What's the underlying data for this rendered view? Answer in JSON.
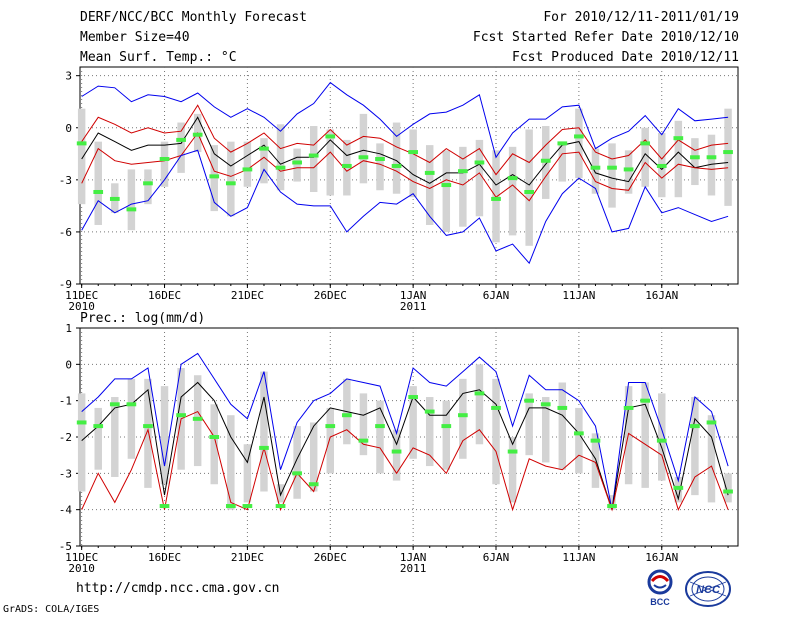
{
  "header": {
    "left": [
      "DERF/NCC/BCC Monthly Forecast",
      "Member Size=40",
      "Mean Surf. Temp.: °C"
    ],
    "right": [
      "For 2010/12/11-2011/01/19",
      "Fcst Started Refer Date 2010/12/10",
      "Fcst Produced Date 2010/12/11"
    ]
  },
  "footer": {
    "url": "http://cmdp.ncc.cma.gov.cn",
    "credit": "GrADS: COLA/IGES"
  },
  "logos": {
    "bcc": "BCC",
    "ncc": "NCC"
  },
  "colors": {
    "blue": "#0000ee",
    "red": "#d00000",
    "black": "#000000",
    "green": "#44ee44",
    "box": "#d3d3d3",
    "grid": "#777777"
  },
  "chart_data": [
    {
      "type": "line",
      "title": "",
      "ylabel": "",
      "ylim": [
        -9,
        3.5
      ],
      "yticks": [
        3,
        0,
        -3,
        -6,
        -9
      ],
      "xticks": [
        {
          "day": 1,
          "label": "11DEC",
          "label2": "2010"
        },
        {
          "day": 6,
          "label": "16DEC",
          "label2": ""
        },
        {
          "day": 11,
          "label": "21DEC",
          "label2": ""
        },
        {
          "day": 16,
          "label": "26DEC",
          "label2": ""
        },
        {
          "day": 21,
          "label": "1JAN",
          "label2": "2011"
        },
        {
          "day": 26,
          "label": "6JAN",
          "label2": ""
        },
        {
          "day": 31,
          "label": "11JAN",
          "label2": ""
        },
        {
          "day": 36,
          "label": "16JAN",
          "label2": ""
        }
      ],
      "xlim": [
        0.9,
        40.6
      ],
      "series": [
        {
          "name": "max",
          "color": "blue",
          "values": [
            1.8,
            2.4,
            2.3,
            1.5,
            1.9,
            1.8,
            1.5,
            2.0,
            1.2,
            0.6,
            1.1,
            0.6,
            -0.2,
            0.8,
            1.4,
            2.6,
            1.9,
            1.3,
            0.5,
            -0.5,
            0.2,
            0.8,
            0.9,
            1.3,
            1.9,
            -1.7,
            -0.3,
            0.5,
            0.5,
            1.2,
            1.3,
            -1.2,
            -0.6,
            -0.2,
            0.7,
            -0.4,
            1.1,
            0.4,
            0.5,
            0.6
          ]
        },
        {
          "name": "upper",
          "color": "red",
          "values": [
            -0.8,
            0.6,
            0.2,
            -0.3,
            0.0,
            -0.3,
            -0.2,
            1.3,
            -0.6,
            -1.4,
            -0.9,
            -0.3,
            -1.2,
            -0.9,
            -1.0,
            -0.1,
            -1.0,
            -0.5,
            -0.6,
            -1.1,
            -1.5,
            -2.0,
            -1.2,
            -1.8,
            -1.2,
            -2.7,
            -1.5,
            -2.0,
            -1.0,
            -0.1,
            0.0,
            -1.4,
            -1.8,
            -1.6,
            -0.7,
            -1.8,
            -0.7,
            -1.3,
            -1.0,
            -0.9
          ]
        },
        {
          "name": "mean",
          "color": "black",
          "values": [
            -1.8,
            -0.3,
            -0.8,
            -1.3,
            -1.0,
            -1.0,
            -0.9,
            0.6,
            -1.5,
            -2.2,
            -1.6,
            -1.0,
            -2.1,
            -1.7,
            -1.7,
            -0.7,
            -1.6,
            -1.3,
            -1.5,
            -1.9,
            -2.7,
            -3.2,
            -2.6,
            -2.6,
            -2.1,
            -3.3,
            -2.7,
            -3.3,
            -2.1,
            -1.0,
            -0.8,
            -2.6,
            -2.9,
            -3.1,
            -1.5,
            -2.4,
            -1.4,
            -2.3,
            -2.1,
            -2.0
          ]
        },
        {
          "name": "lower",
          "color": "red",
          "values": [
            -3.2,
            -1.2,
            -1.9,
            -2.1,
            -2.0,
            -1.9,
            -1.6,
            -0.3,
            -2.5,
            -2.8,
            -2.4,
            -1.7,
            -2.5,
            -2.3,
            -2.3,
            -1.4,
            -2.5,
            -1.9,
            -2.1,
            -2.5,
            -3.1,
            -3.5,
            -3.0,
            -3.3,
            -2.6,
            -4.0,
            -3.3,
            -4.2,
            -2.8,
            -1.5,
            -1.4,
            -3.1,
            -3.5,
            -3.6,
            -2.0,
            -2.9,
            -2.1,
            -2.3,
            -2.4,
            -2.3
          ]
        },
        {
          "name": "min",
          "color": "blue",
          "values": [
            -5.9,
            -4.2,
            -4.9,
            -4.4,
            -4.2,
            -3.0,
            -1.6,
            -1.3,
            -4.3,
            -5.1,
            -4.6,
            -2.4,
            -3.7,
            -4.4,
            -4.5,
            -4.5,
            -6.0,
            -5.1,
            -4.3,
            -4.4,
            -3.8,
            -5.1,
            -6.2,
            -6.0,
            -5.2,
            -7.1,
            -6.7,
            -7.8,
            -5.4,
            -3.8,
            -2.9,
            -3.5,
            -6.0,
            -5.8,
            -3.4,
            -4.9,
            -4.6,
            -5.0,
            -5.4,
            -5.1
          ]
        }
      ],
      "boxes": [
        [
          -4.4,
          1.1
        ],
        [
          -5.6,
          -0.8
        ],
        [
          -4.9,
          -3.2
        ],
        [
          -5.9,
          -2.4
        ],
        [
          -4.4,
          -2.4
        ],
        [
          -3.4,
          -0.8
        ],
        [
          -2.6,
          0.3
        ],
        [
          -1.4,
          0.8
        ],
        [
          -4.8,
          -1.0
        ],
        [
          -5.1,
          -0.8
        ],
        [
          -3.4,
          -0.8
        ],
        [
          -3.2,
          -0.6
        ],
        [
          -3.6,
          0.2
        ],
        [
          -3.1,
          -1.2
        ],
        [
          -3.7,
          0.1
        ],
        [
          -3.9,
          -0.1
        ],
        [
          -3.9,
          -0.7
        ],
        [
          -3.2,
          0.8
        ],
        [
          -3.6,
          -0.9
        ],
        [
          -3.8,
          0.3
        ],
        [
          -4.0,
          -0.1
        ],
        [
          -5.6,
          -1.0
        ],
        [
          -6.0,
          -1.3
        ],
        [
          -5.7,
          -1.1
        ],
        [
          -5.1,
          -0.7
        ],
        [
          -6.6,
          -1.3
        ],
        [
          -6.2,
          -1.1
        ],
        [
          -6.8,
          -0.1
        ],
        [
          -4.1,
          0.1
        ],
        [
          -3.1,
          -0.9
        ],
        [
          -2.9,
          1.1
        ],
        [
          -3.8,
          -1.2
        ],
        [
          -4.6,
          -0.9
        ],
        [
          -3.8,
          -1.3
        ],
        [
          -3.4,
          0.0
        ],
        [
          -4.0,
          -0.3
        ],
        [
          -4.0,
          0.4
        ],
        [
          -3.3,
          -0.6
        ],
        [
          -3.9,
          -0.4
        ],
        [
          -4.5,
          1.1
        ]
      ],
      "obs": [
        -0.9,
        -3.7,
        -4.1,
        -4.7,
        -3.2,
        -1.8,
        -0.7,
        -0.4,
        -2.8,
        -3.2,
        -2.4,
        -1.2,
        -2.3,
        -2.0,
        -1.6,
        -0.5,
        -2.2,
        -1.7,
        -1.8,
        -2.2,
        -1.4,
        -2.6,
        -3.3,
        -2.5,
        -2.0,
        -4.1,
        -2.9,
        -3.7,
        -1.9,
        -0.9,
        -0.5,
        -2.3,
        -2.3,
        -2.4,
        -0.9,
        -2.2,
        -0.6,
        -1.7,
        -1.7,
        -1.4
      ]
    },
    {
      "type": "line",
      "title": "Prec.: log(mm/d)",
      "ylabel": "",
      "ylim": [
        -5,
        1
      ],
      "yticks": [
        1,
        0,
        -1,
        -2,
        -3,
        -4,
        -5
      ],
      "xticks": [
        {
          "day": 1,
          "label": "11DEC",
          "label2": "2010"
        },
        {
          "day": 6,
          "label": "16DEC",
          "label2": ""
        },
        {
          "day": 11,
          "label": "21DEC",
          "label2": ""
        },
        {
          "day": 16,
          "label": "26DEC",
          "label2": ""
        },
        {
          "day": 21,
          "label": "1JAN",
          "label2": "2011"
        },
        {
          "day": 26,
          "label": "6JAN",
          "label2": ""
        },
        {
          "day": 31,
          "label": "11JAN",
          "label2": ""
        },
        {
          "day": 36,
          "label": "16JAN",
          "label2": ""
        }
      ],
      "xlim": [
        0.9,
        40.6
      ],
      "series": [
        {
          "name": "max",
          "color": "blue",
          "values": [
            -1.3,
            -0.9,
            -0.4,
            -0.4,
            -0.1,
            -2.8,
            0.0,
            0.3,
            -0.4,
            -1.1,
            -1.5,
            -0.2,
            -2.9,
            -1.6,
            -1.0,
            -0.8,
            -0.4,
            -0.5,
            -0.6,
            -1.9,
            -0.1,
            -0.5,
            -0.6,
            -0.2,
            0.2,
            -0.2,
            -1.7,
            -0.3,
            -0.7,
            -0.7,
            -1.0,
            -1.7,
            -4.0,
            -0.5,
            -0.5,
            -1.8,
            -3.2,
            -0.9,
            -1.3,
            -2.8
          ]
        },
        {
          "name": "mean",
          "color": "black",
          "values": [
            -2.1,
            -1.7,
            -1.2,
            -1.1,
            -0.7,
            -3.6,
            -0.9,
            -0.5,
            -1.0,
            -2.0,
            -2.7,
            -0.9,
            -3.6,
            -2.6,
            -1.7,
            -1.2,
            -1.3,
            -1.4,
            -1.2,
            -2.2,
            -0.9,
            -1.4,
            -1.4,
            -0.8,
            -0.7,
            -1.1,
            -2.2,
            -1.2,
            -1.2,
            -1.4,
            -1.9,
            -2.6,
            -4.0,
            -1.2,
            -1.1,
            -2.3,
            -3.7,
            -1.5,
            -2.0,
            -3.6
          ]
        },
        {
          "name": "min",
          "color": "red",
          "values": [
            -4.0,
            -3.0,
            -3.8,
            -2.9,
            -1.8,
            -4.0,
            -1.5,
            -1.3,
            -2.0,
            -3.8,
            -4.0,
            -2.3,
            -4.0,
            -3.0,
            -3.5,
            -2.0,
            -1.8,
            -2.2,
            -2.3,
            -3.0,
            -2.3,
            -2.5,
            -3.0,
            -2.1,
            -1.8,
            -2.4,
            -4.0,
            -2.6,
            -2.8,
            -2.9,
            -2.5,
            -2.7,
            -4.0,
            -1.9,
            -2.2,
            -2.5,
            -4.0,
            -3.1,
            -2.8,
            -4.0
          ]
        }
      ],
      "boxes": [
        [
          -3.5,
          -0.8
        ],
        [
          -2.9,
          -1.2
        ],
        [
          -3.1,
          -0.9
        ],
        [
          -2.6,
          -0.4
        ],
        [
          -3.4,
          -0.4
        ],
        [
          -3.3,
          -0.6
        ],
        [
          -2.9,
          -0.1
        ],
        [
          -2.8,
          -0.3
        ],
        [
          -3.3,
          -1.1
        ],
        [
          -4.0,
          -1.4
        ],
        [
          -3.8,
          -2.2
        ],
        [
          -3.5,
          -0.2
        ],
        [
          -3.8,
          -3.3
        ],
        [
          -3.7,
          -1.7
        ],
        [
          -3.5,
          -1.6
        ],
        [
          -3.0,
          -1.2
        ],
        [
          -2.2,
          -0.4
        ],
        [
          -2.5,
          -0.8
        ],
        [
          -3.0,
          -1.0
        ],
        [
          -3.2,
          -1.8
        ],
        [
          -2.6,
          -0.6
        ],
        [
          -2.8,
          -0.9
        ],
        [
          -2.9,
          -1.0
        ],
        [
          -2.6,
          -0.4
        ],
        [
          -2.2,
          0.0
        ],
        [
          -3.3,
          -0.4
        ],
        [
          -3.8,
          -2.0
        ],
        [
          -2.5,
          -0.8
        ],
        [
          -2.7,
          -0.9
        ],
        [
          -2.9,
          -0.5
        ],
        [
          -3.0,
          -1.2
        ],
        [
          -3.4,
          -1.9
        ],
        [
          -4.0,
          -3.6
        ],
        [
          -3.3,
          -0.6
        ],
        [
          -3.4,
          -0.5
        ],
        [
          -3.2,
          -0.8
        ],
        [
          -3.8,
          -3.1
        ],
        [
          -3.6,
          -0.9
        ],
        [
          -3.8,
          -1.4
        ],
        [
          -3.8,
          -3.0
        ]
      ],
      "obs": [
        -1.6,
        -1.7,
        -1.1,
        -1.1,
        -1.7,
        -3.9,
        -1.4,
        -1.5,
        -2.0,
        -3.9,
        -3.9,
        -2.3,
        -3.9,
        -3.0,
        -3.3,
        -1.7,
        -1.4,
        -2.1,
        -1.7,
        -2.4,
        -0.9,
        -1.3,
        -1.7,
        -1.4,
        -0.8,
        -1.2,
        -2.4,
        -1.0,
        -1.1,
        -1.2,
        -1.9,
        -2.1,
        -3.9,
        -1.2,
        -1.0,
        -2.1,
        -3.4,
        -1.7,
        -1.6,
        -3.5
      ]
    }
  ]
}
